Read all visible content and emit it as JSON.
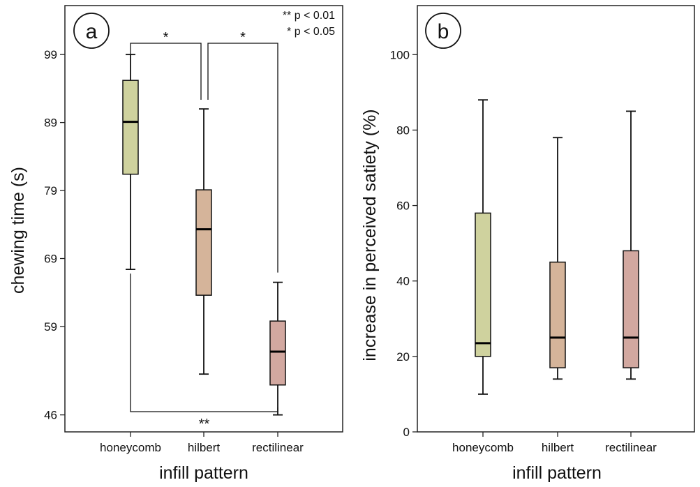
{
  "chart_data": [
    {
      "type": "box",
      "panel_label": "a",
      "xlabel": "infill pattern",
      "ylabel": "chewing time (s)",
      "yticks": [
        46,
        59,
        69,
        79,
        89,
        99
      ],
      "ylim": [
        43.5,
        106.2
      ],
      "categories": [
        "honeycomb",
        "hilbert",
        "rectilinear"
      ],
      "colors": [
        "#cfd29e",
        "#d5b49a",
        "#d2a8a0"
      ],
      "boxes": [
        {
          "min": 67.4,
          "q1": 81.4,
          "median": 89.1,
          "q3": 95.2,
          "max": 99.0
        },
        {
          "min": 52.0,
          "q1": 63.6,
          "median": 73.3,
          "q3": 79.1,
          "max": 91.0
        },
        {
          "min": 46.0,
          "q1": 50.4,
          "median": 55.3,
          "q3": 59.8,
          "max": 65.5
        }
      ],
      "significance": [
        {
          "pair": [
            "honeycomb",
            "hilbert"
          ],
          "label": "*",
          "position": "top"
        },
        {
          "pair": [
            "hilbert",
            "rectilinear"
          ],
          "label": "*",
          "position": "top"
        },
        {
          "pair": [
            "honeycomb",
            "rectilinear"
          ],
          "label": "**",
          "position": "bottom"
        }
      ],
      "legend": [
        "** p < 0.01",
        "* p < 0.05"
      ],
      "legend_position": "top-right"
    },
    {
      "type": "box",
      "panel_label": "b",
      "xlabel": "infill pattern",
      "ylabel": "increase in perceived satiety (%)",
      "yticks": [
        0,
        20,
        40,
        60,
        80,
        100
      ],
      "ylim": [
        0,
        113
      ],
      "categories": [
        "honeycomb",
        "hilbert",
        "rectilinear"
      ],
      "colors": [
        "#cfd29e",
        "#d5b49a",
        "#d2a8a0"
      ],
      "boxes": [
        {
          "min": 10,
          "q1": 20,
          "median": 23.5,
          "q3": 58,
          "max": 88
        },
        {
          "min": 14,
          "q1": 17,
          "median": 25,
          "q3": 45,
          "max": 78
        },
        {
          "min": 14,
          "q1": 17,
          "median": 25,
          "q3": 48,
          "max": 85
        }
      ]
    }
  ]
}
